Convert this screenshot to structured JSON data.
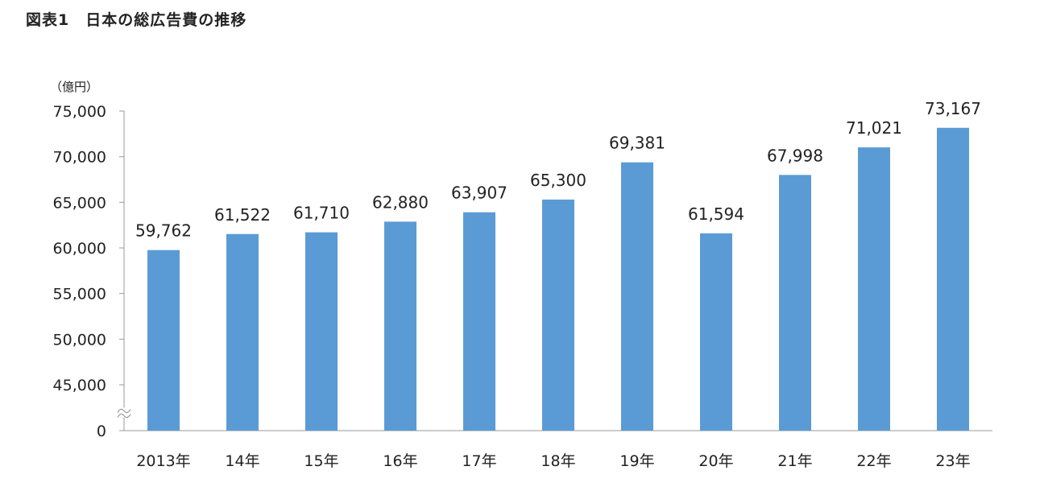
{
  "figure": {
    "title": "図表1　日本の総広告費の推移"
  },
  "chart_data": {
    "type": "bar",
    "title": "",
    "unit_label": "（億円）",
    "categories": [
      "2013年",
      "14年",
      "15年",
      "16年",
      "17年",
      "18年",
      "19年",
      "20年",
      "21年",
      "22年",
      "23年"
    ],
    "values": [
      59762,
      61522,
      61710,
      62880,
      63907,
      65300,
      69381,
      61594,
      67998,
      71021,
      73167
    ],
    "value_labels": [
      "59,762",
      "61,522",
      "61,710",
      "62,880",
      "63,907",
      "65,300",
      "69,381",
      "61,594",
      "67,998",
      "71,021",
      "73,167"
    ],
    "y_ticks": [
      {
        "value": 0,
        "label": "0"
      },
      {
        "value": 45000,
        "label": "45,000"
      },
      {
        "value": 50000,
        "label": "50,000"
      },
      {
        "value": 55000,
        "label": "55,000"
      },
      {
        "value": 60000,
        "label": "60,000"
      },
      {
        "value": 65000,
        "label": "65,000"
      },
      {
        "value": 70000,
        "label": "70,000"
      },
      {
        "value": 75000,
        "label": "75,000"
      }
    ],
    "ylim": [
      0,
      75000
    ],
    "axis_break": true,
    "bar_color": "#5b9bd5",
    "grid": false,
    "legend": "none"
  }
}
